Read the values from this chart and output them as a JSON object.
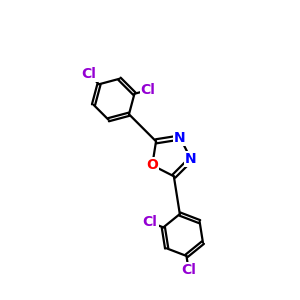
{
  "background": "#ffffff",
  "bond_color": "#000000",
  "bond_width": 1.6,
  "O_color": "#ff0000",
  "N_color": "#0000ff",
  "Cl_color": "#9400d3",
  "font_size_atom": 10,
  "fig_size": [
    3.0,
    3.0
  ],
  "dpi": 100,
  "xlim": [
    0,
    10
  ],
  "ylim": [
    0,
    10
  ]
}
